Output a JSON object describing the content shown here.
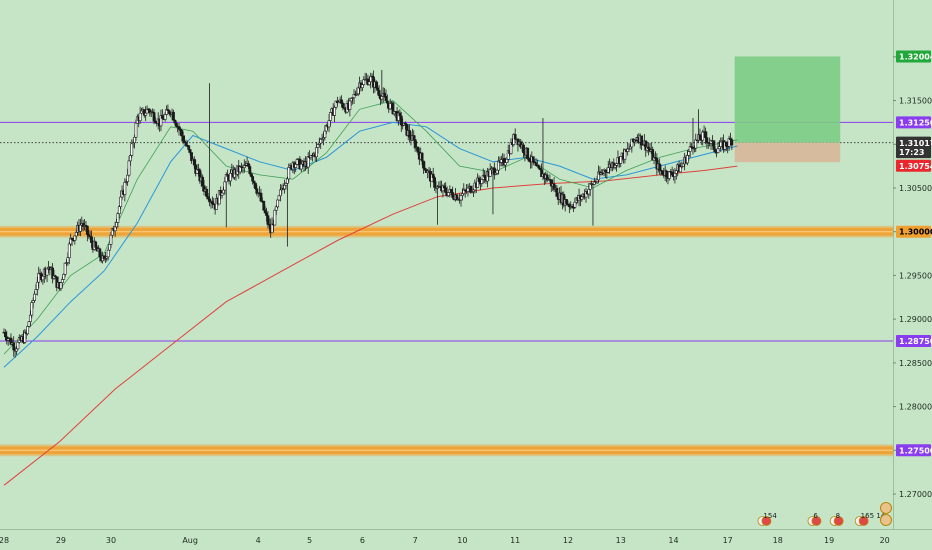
{
  "colors": {
    "background": "#c6e5c7",
    "candle": "#1b1b1b",
    "ma_red": "#e0413b",
    "ma_blue": "#2a96d8",
    "ma_green": "#3f9f55",
    "level_purple": "#8a3cf0",
    "zone_orange": "#f0a030",
    "target_green": "#7ccc85",
    "stop_tan": "#d8b89c"
  },
  "chart_data": {
    "type": "candlestick",
    "y_axis": {
      "range": [
        1.266,
        1.3265
      ],
      "ticks": [
        "1.32000",
        "1.31500",
        "1.31000",
        "1.30500",
        "1.30000",
        "1.29500",
        "1.29000",
        "1.28500",
        "1.28000",
        "1.27500",
        "1.27000"
      ],
      "tick_values": [
        1.32,
        1.315,
        1.31,
        1.305,
        1.3,
        1.295,
        1.29,
        1.285,
        1.28,
        1.275,
        1.27
      ]
    },
    "x_axis": {
      "labels": [
        "28",
        "29",
        "30",
        "Aug",
        "4",
        "5",
        "6",
        "7",
        "10",
        "11",
        "12",
        "13",
        "14",
        "17",
        "18",
        "19",
        "20"
      ],
      "label_index": [
        0,
        10.25,
        19.25,
        33.5,
        45.75,
        55,
        64.5,
        74,
        82.5,
        92,
        101.5,
        111,
        120.5,
        130.25,
        139.25,
        148.5,
        158.5
      ],
      "index_range": [
        0,
        160
      ]
    },
    "price_tags": [
      {
        "label": "1.32004",
        "value": 1.32004,
        "color": "#22a83a"
      },
      {
        "label": "1.31250",
        "value": 1.3125,
        "color": "#8a3cf0"
      },
      {
        "label": "1.31018",
        "value": 1.31018,
        "color": "#333333"
      },
      {
        "label": "1.31017",
        "value": 1.31017,
        "color": "#333333"
      },
      {
        "label": "17:23",
        "value": 1.3091,
        "color": "#333333"
      },
      {
        "label": "1.30754",
        "value": 1.30754,
        "color": "#e8282e"
      },
      {
        "label": "1.30000",
        "value": 1.3,
        "color": "#f0a030",
        "text_color": "#000000"
      },
      {
        "label": "1.28750",
        "value": 1.2875,
        "color": "#8a3cf0"
      },
      {
        "label": "1.27500",
        "value": 1.275,
        "color": "#8a3cf0"
      }
    ],
    "horizontal_lines": [
      {
        "value": 1.3125,
        "kind": "level"
      },
      {
        "value": 1.2875,
        "kind": "level"
      },
      {
        "value": 1.31018,
        "kind": "last-price"
      }
    ],
    "zones": [
      {
        "center": 1.3,
        "half_height": 0.00045
      },
      {
        "center": 1.275,
        "half_height": 0.00045
      }
    ],
    "position": {
      "x_start_index": 131.5,
      "x_end_index": 150.5,
      "entry": 1.31018,
      "target": 1.32004,
      "stop": 1.30795
    },
    "path_anchors": [
      [
        0,
        1.2885
      ],
      [
        2,
        1.2868
      ],
      [
        4,
        1.2882
      ],
      [
        6,
        1.2945
      ],
      [
        8,
        1.296
      ],
      [
        10,
        1.2935
      ],
      [
        12,
        1.299
      ],
      [
        14,
        1.301
      ],
      [
        16,
        1.2985
      ],
      [
        18,
        1.2965
      ],
      [
        20,
        1.301
      ],
      [
        22,
        1.306
      ],
      [
        24,
        1.313
      ],
      [
        26,
        1.314
      ],
      [
        28,
        1.3125
      ],
      [
        30,
        1.314
      ],
      [
        32,
        1.311
      ],
      [
        34,
        1.308
      ],
      [
        36,
        1.305
      ],
      [
        38,
        1.303
      ],
      [
        40,
        1.306
      ],
      [
        42,
        1.307
      ],
      [
        44,
        1.3075
      ],
      [
        46,
        1.304
      ],
      [
        48,
        1.3
      ],
      [
        50,
        1.305
      ],
      [
        52,
        1.308
      ],
      [
        54,
        1.3075
      ],
      [
        56,
        1.309
      ],
      [
        58,
        1.312
      ],
      [
        60,
        1.315
      ],
      [
        62,
        1.314
      ],
      [
        64,
        1.317
      ],
      [
        66,
        1.3175
      ],
      [
        68,
        1.3155
      ],
      [
        70,
        1.314
      ],
      [
        72,
        1.312
      ],
      [
        74,
        1.31
      ],
      [
        76,
        1.307
      ],
      [
        78,
        1.305
      ],
      [
        80,
        1.3045
      ],
      [
        82,
        1.304
      ],
      [
        84,
        1.305
      ],
      [
        86,
        1.306
      ],
      [
        88,
        1.307
      ],
      [
        90,
        1.308
      ],
      [
        92,
        1.311
      ],
      [
        94,
        1.309
      ],
      [
        96,
        1.307
      ],
      [
        98,
        1.306
      ],
      [
        100,
        1.304
      ],
      [
        102,
        1.303
      ],
      [
        104,
        1.304
      ],
      [
        106,
        1.3055
      ],
      [
        108,
        1.307
      ],
      [
        110,
        1.308
      ],
      [
        112,
        1.309
      ],
      [
        114,
        1.311
      ],
      [
        116,
        1.3095
      ],
      [
        118,
        1.307
      ],
      [
        120,
        1.3065
      ],
      [
        122,
        1.3075
      ],
      [
        124,
        1.31
      ],
      [
        126,
        1.311
      ],
      [
        128,
        1.3095
      ],
      [
        130,
        1.31
      ],
      [
        131,
        1.3105
      ]
    ],
    "spikes": [
      {
        "index": 37,
        "high": 1.317
      },
      {
        "index": 40,
        "low": 1.3005
      },
      {
        "index": 51,
        "low": 1.2983
      },
      {
        "index": 68,
        "high": 1.3185
      },
      {
        "index": 78,
        "low": 1.3008
      },
      {
        "index": 88,
        "low": 1.302
      },
      {
        "index": 97,
        "high": 1.313
      },
      {
        "index": 106,
        "low": 1.3007
      },
      {
        "index": 124,
        "high": 1.313
      },
      {
        "index": 125,
        "high": 1.314
      }
    ],
    "moving_averages": [
      {
        "color_key": "ma_red",
        "anchors": [
          [
            0,
            1.271
          ],
          [
            10,
            1.276
          ],
          [
            20,
            1.282
          ],
          [
            30,
            1.287
          ],
          [
            40,
            1.292
          ],
          [
            50,
            1.2955
          ],
          [
            60,
            1.299
          ],
          [
            70,
            1.302
          ],
          [
            78,
            1.304
          ],
          [
            88,
            1.305
          ],
          [
            98,
            1.3055
          ],
          [
            108,
            1.3058
          ],
          [
            118,
            1.3065
          ],
          [
            126,
            1.307
          ],
          [
            132,
            1.3075
          ]
        ]
      },
      {
        "color_key": "ma_blue",
        "anchors": [
          [
            0,
            1.2845
          ],
          [
            6,
            1.288
          ],
          [
            12,
            1.292
          ],
          [
            18,
            1.2955
          ],
          [
            24,
            1.301
          ],
          [
            30,
            1.308
          ],
          [
            34,
            1.311
          ],
          [
            40,
            1.3095
          ],
          [
            46,
            1.308
          ],
          [
            52,
            1.307
          ],
          [
            58,
            1.3085
          ],
          [
            64,
            1.3115
          ],
          [
            70,
            1.3125
          ],
          [
            76,
            1.312
          ],
          [
            82,
            1.3095
          ],
          [
            88,
            1.308
          ],
          [
            94,
            1.3085
          ],
          [
            100,
            1.3075
          ],
          [
            106,
            1.306
          ],
          [
            112,
            1.3065
          ],
          [
            118,
            1.3075
          ],
          [
            124,
            1.3085
          ],
          [
            132,
            1.3098
          ]
        ]
      },
      {
        "color_key": "ma_green",
        "anchors": [
          [
            0,
            1.286
          ],
          [
            6,
            1.29
          ],
          [
            12,
            1.295
          ],
          [
            18,
            1.2975
          ],
          [
            24,
            1.306
          ],
          [
            30,
            1.312
          ],
          [
            34,
            1.3115
          ],
          [
            40,
            1.3075
          ],
          [
            46,
            1.3065
          ],
          [
            52,
            1.306
          ],
          [
            58,
            1.309
          ],
          [
            64,
            1.314
          ],
          [
            70,
            1.315
          ],
          [
            76,
            1.3115
          ],
          [
            82,
            1.3075
          ],
          [
            88,
            1.3068
          ],
          [
            94,
            1.3085
          ],
          [
            100,
            1.306
          ],
          [
            106,
            1.305
          ],
          [
            112,
            1.307
          ],
          [
            118,
            1.3085
          ],
          [
            124,
            1.3095
          ],
          [
            132,
            1.3105
          ]
        ]
      }
    ],
    "events": [
      {
        "index": 136.5,
        "count": "15",
        "extra": "4"
      },
      {
        "index": 145.5,
        "count": "6",
        "extra": ""
      },
      {
        "index": 149.5,
        "count": "8",
        "extra": ""
      },
      {
        "index": 154,
        "count": "16",
        "extra": "5 14"
      }
    ]
  }
}
